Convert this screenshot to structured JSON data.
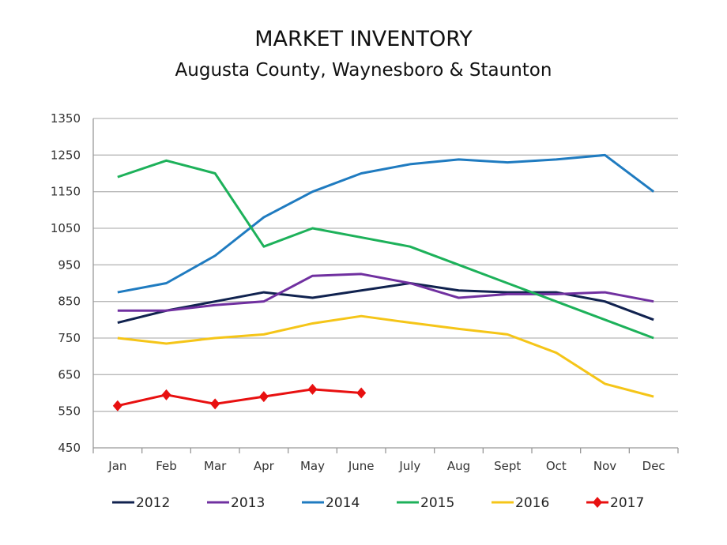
{
  "chart_data": {
    "type": "line",
    "title": "MARKET INVENTORY",
    "subtitle": "Augusta County, Waynesboro & Staunton",
    "xlabel": "",
    "ylabel": "",
    "ylim": [
      450,
      1350
    ],
    "yticks": [
      450,
      550,
      650,
      750,
      850,
      950,
      1050,
      1150,
      1250,
      1350
    ],
    "grid": true,
    "legend_position": "bottom",
    "categories": [
      "Jan",
      "Feb",
      "Mar",
      "Apr",
      "May",
      "June",
      "July",
      "Aug",
      "Sept",
      "Oct",
      "Nov",
      "Dec"
    ],
    "series": [
      {
        "name": "2012",
        "color": "#10224f",
        "marker": "none",
        "values": [
          792,
          825,
          850,
          875,
          860,
          880,
          900,
          880,
          875,
          875,
          850,
          800
        ]
      },
      {
        "name": "2013",
        "color": "#7030a0",
        "marker": "none",
        "values": [
          825,
          825,
          840,
          850,
          920,
          925,
          900,
          860,
          870,
          870,
          875,
          850
        ]
      },
      {
        "name": "2014",
        "color": "#1f7bc0",
        "marker": "none",
        "values": [
          875,
          900,
          975,
          1080,
          1150,
          1200,
          1225,
          1238,
          1230,
          1238,
          1250,
          1150
        ]
      },
      {
        "name": "2015",
        "color": "#1db15a",
        "marker": "none",
        "values": [
          1190,
          1235,
          1200,
          1000,
          1050,
          1025,
          1000,
          950,
          900,
          850,
          800,
          750
        ]
      },
      {
        "name": "2016",
        "color": "#f5c518",
        "marker": "none",
        "values": [
          750,
          735,
          750,
          760,
          790,
          810,
          792,
          775,
          760,
          710,
          625,
          590
        ]
      },
      {
        "name": "2017",
        "color": "#e81010",
        "marker": "diamond",
        "values": [
          565,
          595,
          570,
          590,
          610,
          600,
          null,
          null,
          null,
          null,
          null,
          null
        ]
      }
    ]
  }
}
